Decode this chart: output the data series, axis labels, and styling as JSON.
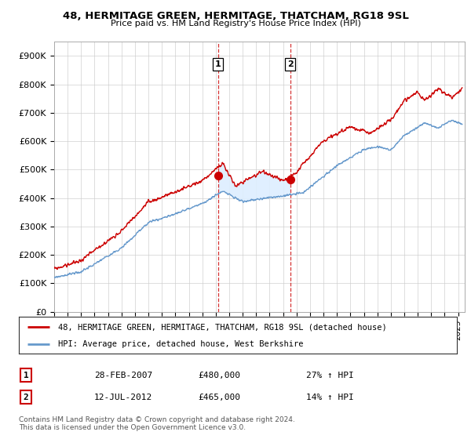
{
  "title": "48, HERMITAGE GREEN, HERMITAGE, THATCHAM, RG18 9SL",
  "subtitle": "Price paid vs. HM Land Registry's House Price Index (HPI)",
  "ylabel_ticks": [
    "£0",
    "£100K",
    "£200K",
    "£300K",
    "£400K",
    "£500K",
    "£600K",
    "£700K",
    "£800K",
    "£900K"
  ],
  "ytick_vals": [
    0,
    100000,
    200000,
    300000,
    400000,
    500000,
    600000,
    700000,
    800000,
    900000
  ],
  "ylim": [
    0,
    950000
  ],
  "xlim_start": 1995.0,
  "xlim_end": 2025.5,
  "sale1_x": 2007.16,
  "sale1_y": 480000,
  "sale2_x": 2012.53,
  "sale2_y": 465000,
  "sale1": {
    "date_num": 2007.16,
    "price": 480000,
    "label": "1",
    "pct": "27%",
    "dir": "↑",
    "date_str": "28-FEB-2007"
  },
  "sale2": {
    "date_num": 2012.53,
    "price": 465000,
    "label": "2",
    "pct": "14%",
    "dir": "↑",
    "date_str": "12-JUL-2012"
  },
  "legend_line1": "48, HERMITAGE GREEN, HERMITAGE, THATCHAM, RG18 9SL (detached house)",
  "legend_line2": "HPI: Average price, detached house, West Berkshire",
  "footer": "Contains HM Land Registry data © Crown copyright and database right 2024.\nThis data is licensed under the Open Government Licence v3.0.",
  "line_color_red": "#cc0000",
  "line_color_blue": "#6699cc",
  "shade_color": "#ddeeff",
  "bg_color": "#ffffff",
  "grid_color": "#cccccc"
}
